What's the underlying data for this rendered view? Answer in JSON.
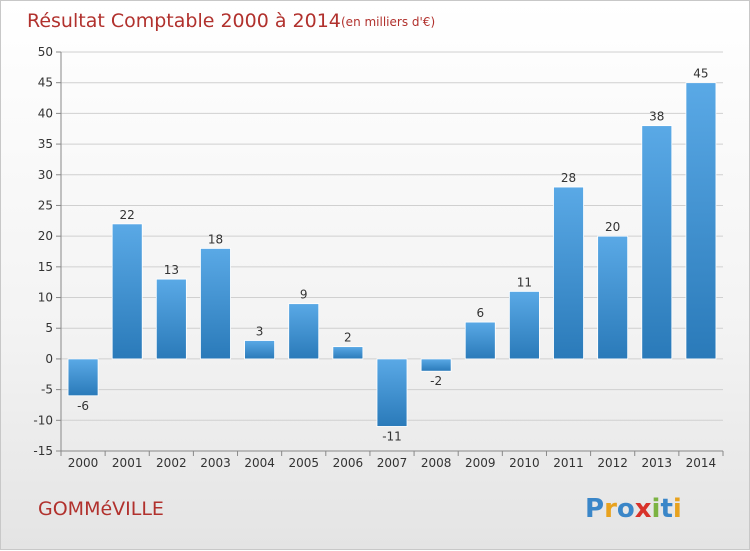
{
  "title": "Résultat Comptable 2000 à 2014",
  "subtitle": "(en milliers d'€)",
  "footer": {
    "place": "GOMMéVILLE"
  },
  "logo": {
    "letters": [
      "P",
      "r",
      "o",
      "x",
      "i",
      "t",
      "i"
    ],
    "colors": [
      "#3a86c8",
      "#e8a21e",
      "#3a86c8",
      "#d8322a",
      "#7cb342",
      "#3a86c8",
      "#e8a21e"
    ]
  },
  "colors": {
    "bar_light": "#5aa9e6",
    "bar_dark": "#2a7ab9",
    "title": "#b1312d",
    "grid": "#d0d0d0"
  },
  "chart_data": {
    "type": "bar",
    "title": "Résultat Comptable 2000 à 2014",
    "subtitle": "(en milliers d'€)",
    "categories": [
      "2000",
      "2001",
      "2002",
      "2003",
      "2004",
      "2005",
      "2006",
      "2007",
      "2008",
      "2009",
      "2010",
      "2011",
      "2012",
      "2013",
      "2014"
    ],
    "values": [
      -6,
      22,
      13,
      18,
      3,
      9,
      2,
      -11,
      -2,
      6,
      11,
      28,
      20,
      38,
      45
    ],
    "data_labels": [
      "-6",
      "22",
      "13",
      "18",
      "3",
      "9",
      "2",
      "-11",
      "-2",
      "6",
      "11",
      "28",
      "20",
      "38",
      "45"
    ],
    "ylim": [
      -15,
      50
    ],
    "yticks": [
      -15,
      -10,
      -5,
      0,
      5,
      10,
      15,
      20,
      25,
      30,
      35,
      40,
      45,
      50
    ],
    "ytick_labels": [
      "-15",
      "-10",
      "-5",
      "0",
      "5",
      "10",
      "15",
      "20",
      "25",
      "30",
      "35",
      "40",
      "45",
      "50"
    ],
    "xlabel": "",
    "ylabel": "",
    "grid": true
  }
}
